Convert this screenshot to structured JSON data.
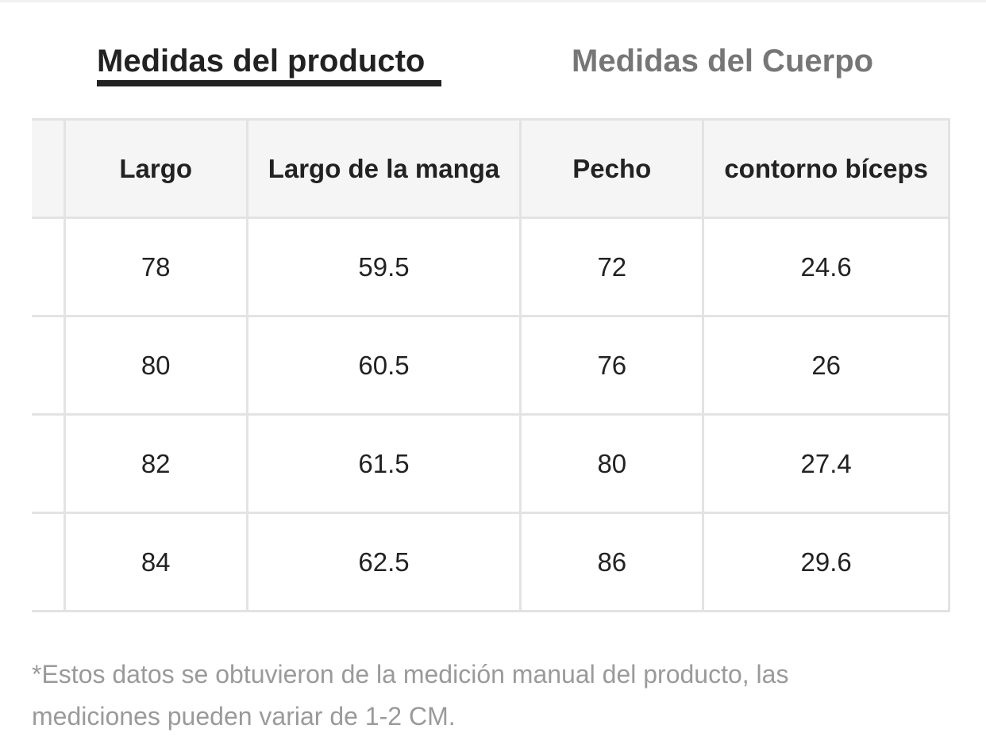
{
  "tabs": {
    "active_label": "Medidas del producto",
    "inactive_label": "Medidas del Cuerpo"
  },
  "table": {
    "headers": [
      "Largo",
      "Largo de la manga",
      "Pecho",
      "contorno bíceps"
    ],
    "rows": [
      [
        "78",
        "59.5",
        "72",
        "24.6"
      ],
      [
        "80",
        "60.5",
        "76",
        "26"
      ],
      [
        "82",
        "61.5",
        "80",
        "27.4"
      ],
      [
        "84",
        "62.5",
        "86",
        "29.6"
      ]
    ]
  },
  "footnote": "*Estos datos se obtuvieron de la medición manual del producto, las mediciones pueden variar de 1-2 CM.",
  "colors": {
    "active_text": "#222222",
    "inactive_text": "#767676",
    "header_bg": "#f5f5f5",
    "border": "#e3e3e3",
    "footnote_text": "#9a9a9a"
  }
}
